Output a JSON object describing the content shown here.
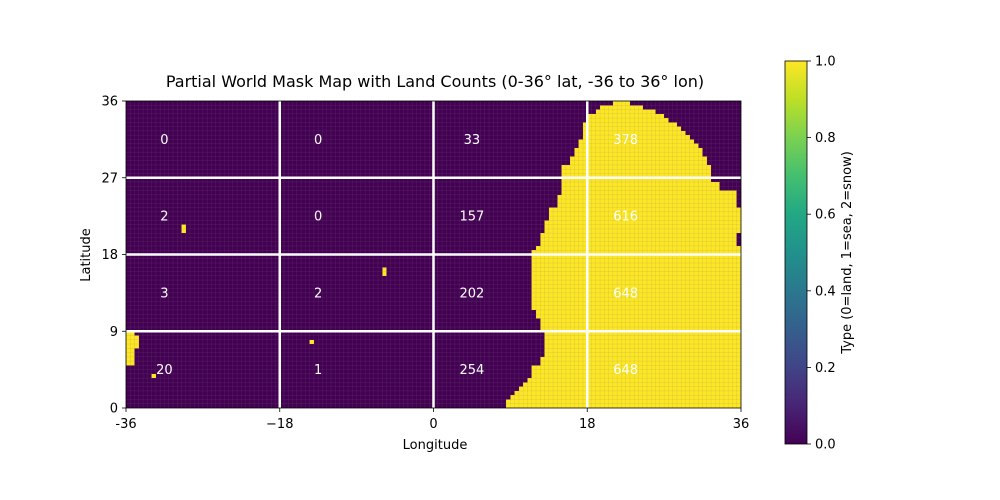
{
  "chart_data": {
    "type": "heatmap",
    "title": "Partial World Mask Map with Land Counts (0-36° lat, -36 to 36° lon)",
    "xlabel": "Longitude",
    "ylabel": "Latitude",
    "xlim": [
      -36,
      36
    ],
    "ylim": [
      0,
      36
    ],
    "x_ticks": [
      "-36",
      "−18",
      "0",
      "18",
      "36"
    ],
    "x_tick_values": [
      -36,
      -18,
      0,
      18,
      36
    ],
    "y_ticks": [
      "0",
      "9",
      "18",
      "27",
      "36"
    ],
    "y_tick_values": [
      0,
      9,
      18,
      27,
      36
    ],
    "resolution_deg": 0.5,
    "colormap": "viridis",
    "colors": {
      "zero": "#440154",
      "one": "#fde725",
      "grid": "#ffffff"
    },
    "grid_lines_lon": [
      -18,
      0,
      18
    ],
    "grid_lines_lat": [
      9,
      18,
      27
    ],
    "colorbar": {
      "label": "Type (0=land, 1=sea, 2=snow)",
      "range": [
        0.0,
        1.0
      ],
      "ticks": [
        "0.0",
        "0.2",
        "0.4",
        "0.6",
        "0.8",
        "1.0"
      ],
      "tick_values": [
        0.0,
        0.2,
        0.4,
        0.6,
        0.8,
        1.0
      ]
    },
    "cell_counts": [
      {
        "lon": -31.5,
        "lat": 31.5,
        "label": "0"
      },
      {
        "lon": -13.5,
        "lat": 31.5,
        "label": "0"
      },
      {
        "lon": 4.5,
        "lat": 31.5,
        "label": "33"
      },
      {
        "lon": 22.5,
        "lat": 31.5,
        "label": "378"
      },
      {
        "lon": -31.5,
        "lat": 22.5,
        "label": "2"
      },
      {
        "lon": -13.5,
        "lat": 22.5,
        "label": "0"
      },
      {
        "lon": 4.5,
        "lat": 22.5,
        "label": "157"
      },
      {
        "lon": 22.5,
        "lat": 22.5,
        "label": "616"
      },
      {
        "lon": -31.5,
        "lat": 13.5,
        "label": "3"
      },
      {
        "lon": -13.5,
        "lat": 13.5,
        "label": "2"
      },
      {
        "lon": 4.5,
        "lat": 13.5,
        "label": "202"
      },
      {
        "lon": 22.5,
        "lat": 13.5,
        "label": "648"
      },
      {
        "lon": -31.5,
        "lat": 4.5,
        "label": "20"
      },
      {
        "lon": -13.5,
        "lat": 4.5,
        "label": "1"
      },
      {
        "lon": 4.5,
        "lat": 4.5,
        "label": "254"
      },
      {
        "lon": 22.5,
        "lat": 4.5,
        "label": "648"
      }
    ],
    "mask_value_1_regions": [
      {
        "lat_range": [
          0,
          0.5
        ],
        "lon_range": [
          8.5,
          36
        ]
      },
      {
        "lat_range": [
          0.5,
          1
        ],
        "lon_range": [
          8.5,
          36
        ]
      },
      {
        "lat_range": [
          1,
          1.5
        ],
        "lon_range": [
          9,
          36
        ]
      },
      {
        "lat_range": [
          1.5,
          2
        ],
        "lon_range": [
          9.5,
          36
        ]
      },
      {
        "lat_range": [
          2,
          2.5
        ],
        "lon_range": [
          10,
          36
        ]
      },
      {
        "lat_range": [
          2.5,
          3
        ],
        "lon_range": [
          10.5,
          36
        ]
      },
      {
        "lat_range": [
          3,
          3.5
        ],
        "lon_range": [
          11,
          36
        ]
      },
      {
        "lat_range": [
          3.5,
          5
        ],
        "lon_range": [
          11.5,
          36
        ]
      },
      {
        "lat_range": [
          5,
          6
        ],
        "lon_range": [
          12.5,
          36
        ]
      },
      {
        "lat_range": [
          6,
          9
        ],
        "lon_range": [
          13,
          36
        ]
      },
      {
        "lat_range": [
          9,
          10.5
        ],
        "lon_range": [
          12.5,
          36
        ]
      },
      {
        "lat_range": [
          10.5,
          11.5
        ],
        "lon_range": [
          12,
          36
        ]
      },
      {
        "lat_range": [
          11.5,
          14.5
        ],
        "lon_range": [
          11.5,
          36
        ]
      },
      {
        "lat_range": [
          14.5,
          18.5
        ],
        "lon_range": [
          11.5,
          36
        ]
      },
      {
        "lat_range": [
          18.5,
          19
        ],
        "lon_range": [
          12,
          36
        ]
      },
      {
        "lat_range": [
          19,
          20.5
        ],
        "lon_range": [
          12.5,
          35.5
        ]
      },
      {
        "lat_range": [
          20.5,
          22
        ],
        "lon_range": [
          13,
          36
        ]
      },
      {
        "lat_range": [
          22,
          23.5
        ],
        "lon_range": [
          13.5,
          36
        ]
      },
      {
        "lat_range": [
          23.5,
          25
        ],
        "lon_range": [
          14.5,
          35.5
        ]
      },
      {
        "lat_range": [
          25,
          25.5
        ],
        "lon_range": [
          15,
          35.5
        ]
      },
      {
        "lat_range": [
          25.5,
          26.5
        ],
        "lon_range": [
          15,
          33.5
        ]
      },
      {
        "lat_range": [
          26.5,
          28.5
        ],
        "lon_range": [
          15,
          32.5
        ]
      },
      {
        "lat_range": [
          28.5,
          29.5
        ],
        "lon_range": [
          16,
          32
        ]
      },
      {
        "lat_range": [
          29.5,
          30.5
        ],
        "lon_range": [
          16.5,
          31.5
        ]
      },
      {
        "lat_range": [
          30.5,
          31
        ],
        "lon_range": [
          17,
          31
        ]
      },
      {
        "lat_range": [
          31,
          31.5
        ],
        "lon_range": [
          17,
          30.5
        ]
      },
      {
        "lat_range": [
          31.5,
          32
        ],
        "lon_range": [
          17.5,
          30
        ]
      },
      {
        "lat_range": [
          32,
          32.5
        ],
        "lon_range": [
          17.5,
          29.5
        ]
      },
      {
        "lat_range": [
          32.5,
          33
        ],
        "lon_range": [
          17.5,
          29
        ]
      },
      {
        "lat_range": [
          33,
          33.5
        ],
        "lon_range": [
          17.5,
          28.5
        ]
      },
      {
        "lat_range": [
          33.5,
          34
        ],
        "lon_range": [
          18,
          27.5
        ]
      },
      {
        "lat_range": [
          34,
          34.5
        ],
        "lon_range": [
          18,
          27
        ]
      },
      {
        "lat_range": [
          34.5,
          35
        ],
        "lon_range": [
          19,
          26
        ]
      },
      {
        "lat_range": [
          35,
          35.5
        ],
        "lon_range": [
          19.5,
          24.5
        ]
      },
      {
        "lat_range": [
          35.5,
          36
        ],
        "lon_range": [
          21,
          23
        ]
      },
      {
        "lat_range": [
          5,
          9
        ],
        "lon_range": [
          -36,
          -35
        ]
      },
      {
        "lat_range": [
          7,
          8.5
        ],
        "lon_range": [
          -35,
          -34.5
        ]
      },
      {
        "lat_range": [
          3.5,
          4
        ],
        "lon_range": [
          -33,
          -32.5
        ]
      },
      {
        "lat_range": [
          20.5,
          21.5
        ],
        "lon_range": [
          -29.5,
          -29
        ]
      },
      {
        "lat_range": [
          15.5,
          16.5
        ],
        "lon_range": [
          -6,
          -5.5
        ]
      },
      {
        "lat_range": [
          7.5,
          8
        ],
        "lon_range": [
          -14.5,
          -14
        ]
      }
    ]
  }
}
